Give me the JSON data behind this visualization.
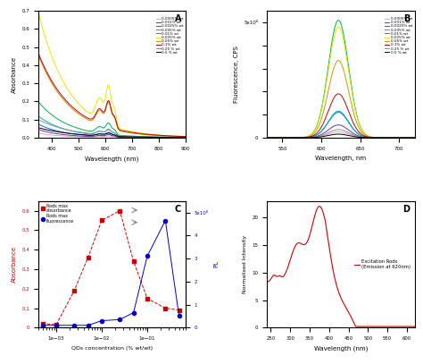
{
  "panel_A": {
    "title": "A",
    "xlabel": "Wavelength (nm)",
    "ylabel": "Absorbance",
    "xlim": [
      350,
      900
    ],
    "ylim": [
      0,
      0.7
    ],
    "concentrations": [
      "0.0005% wt",
      "0.001% wt",
      "0.0025% wt",
      "0.005% wt",
      "0.01% wt",
      "0.025% wt",
      "0.05% wt",
      "0.1% wt",
      "0.25 % wt",
      "0.5 % wt"
    ],
    "colors": [
      "#e8a0c8",
      "#7030a0",
      "#0070c0",
      "#00b0d8",
      "#00b050",
      "#e8e800",
      "#c8960a",
      "#c00000",
      "#909090",
      "#000000"
    ],
    "max_absorbances": [
      0.025,
      0.045,
      0.075,
      0.12,
      0.2,
      0.7,
      0.46,
      0.47,
      0.1,
      0.055
    ]
  },
  "panel_B": {
    "title": "B",
    "xlabel": "Wavelength, nm",
    "ylabel": "Fluorescence, CPS",
    "xlim": [
      530,
      720
    ],
    "ylim": [
      0,
      550000000.0
    ],
    "concentrations": [
      "0.0005% wt",
      "0.001% wt",
      "0.0025% wt",
      "0.005% wt",
      "0.01% wt",
      "0.025% wt",
      "0.05% wt",
      "0.1% wt",
      "0.25 % wt",
      "0.5 % wt"
    ],
    "colors": [
      "#e8a0c8",
      "#7030a0",
      "#0070c0",
      "#00b0d8",
      "#00b050",
      "#e8e800",
      "#c8960a",
      "#c00000",
      "#909090",
      "#000000"
    ],
    "peak_wavelength": 622,
    "peak_sigma": 13,
    "peak_heights": [
      25000000.0,
      55000000.0,
      110000000.0,
      115000000.0,
      510000000.0,
      480000000.0,
      335000000.0,
      190000000.0,
      35000000.0,
      15000000.0
    ]
  },
  "panel_C": {
    "title": "C",
    "xlabel": "QDs concentration (% wt/wt)",
    "ylabel_left": "Absorbance",
    "ylabel_right": "PL",
    "abs_x": [
      0.0005,
      0.001,
      0.0025,
      0.005,
      0.01,
      0.025,
      0.05,
      0.1,
      0.25,
      0.5
    ],
    "abs_y": [
      0.02,
      0.015,
      0.19,
      0.36,
      0.55,
      0.6,
      0.34,
      0.15,
      0.1,
      0.09
    ],
    "fl_x": [
      0.0005,
      0.001,
      0.0025,
      0.005,
      0.01,
      0.025,
      0.05,
      0.1,
      0.25,
      0.5
    ],
    "fl_y": [
      10000000.0,
      10000000.0,
      10000000.0,
      10000000.0,
      30000000.0,
      35000000.0,
      65000000.0,
      310000000.0,
      465000000.0,
      50000000.0
    ],
    "abs_color": "#cc0000",
    "fl_color": "#0000cc",
    "yticks_right": [
      0,
      100000000.0,
      200000000.0,
      300000000.0,
      400000000.0,
      500000000.0
    ],
    "ytick_labels_right": [
      "0",
      "1",
      "2",
      "3",
      "4",
      "5x10⁸"
    ]
  },
  "panel_D": {
    "title": "D",
    "xlabel": "Wavelength (nm)",
    "ylabel": "Normalised Intensity",
    "xlim": [
      240,
      620
    ],
    "ylim": [
      0,
      23
    ],
    "legend": "Excitation Rods\n(Emission at 620nm)",
    "color": "#cc0000",
    "yticks": [
      0,
      5,
      10,
      15,
      20
    ],
    "xticks": [
      250,
      300,
      350,
      400,
      450,
      500,
      550,
      600
    ]
  }
}
